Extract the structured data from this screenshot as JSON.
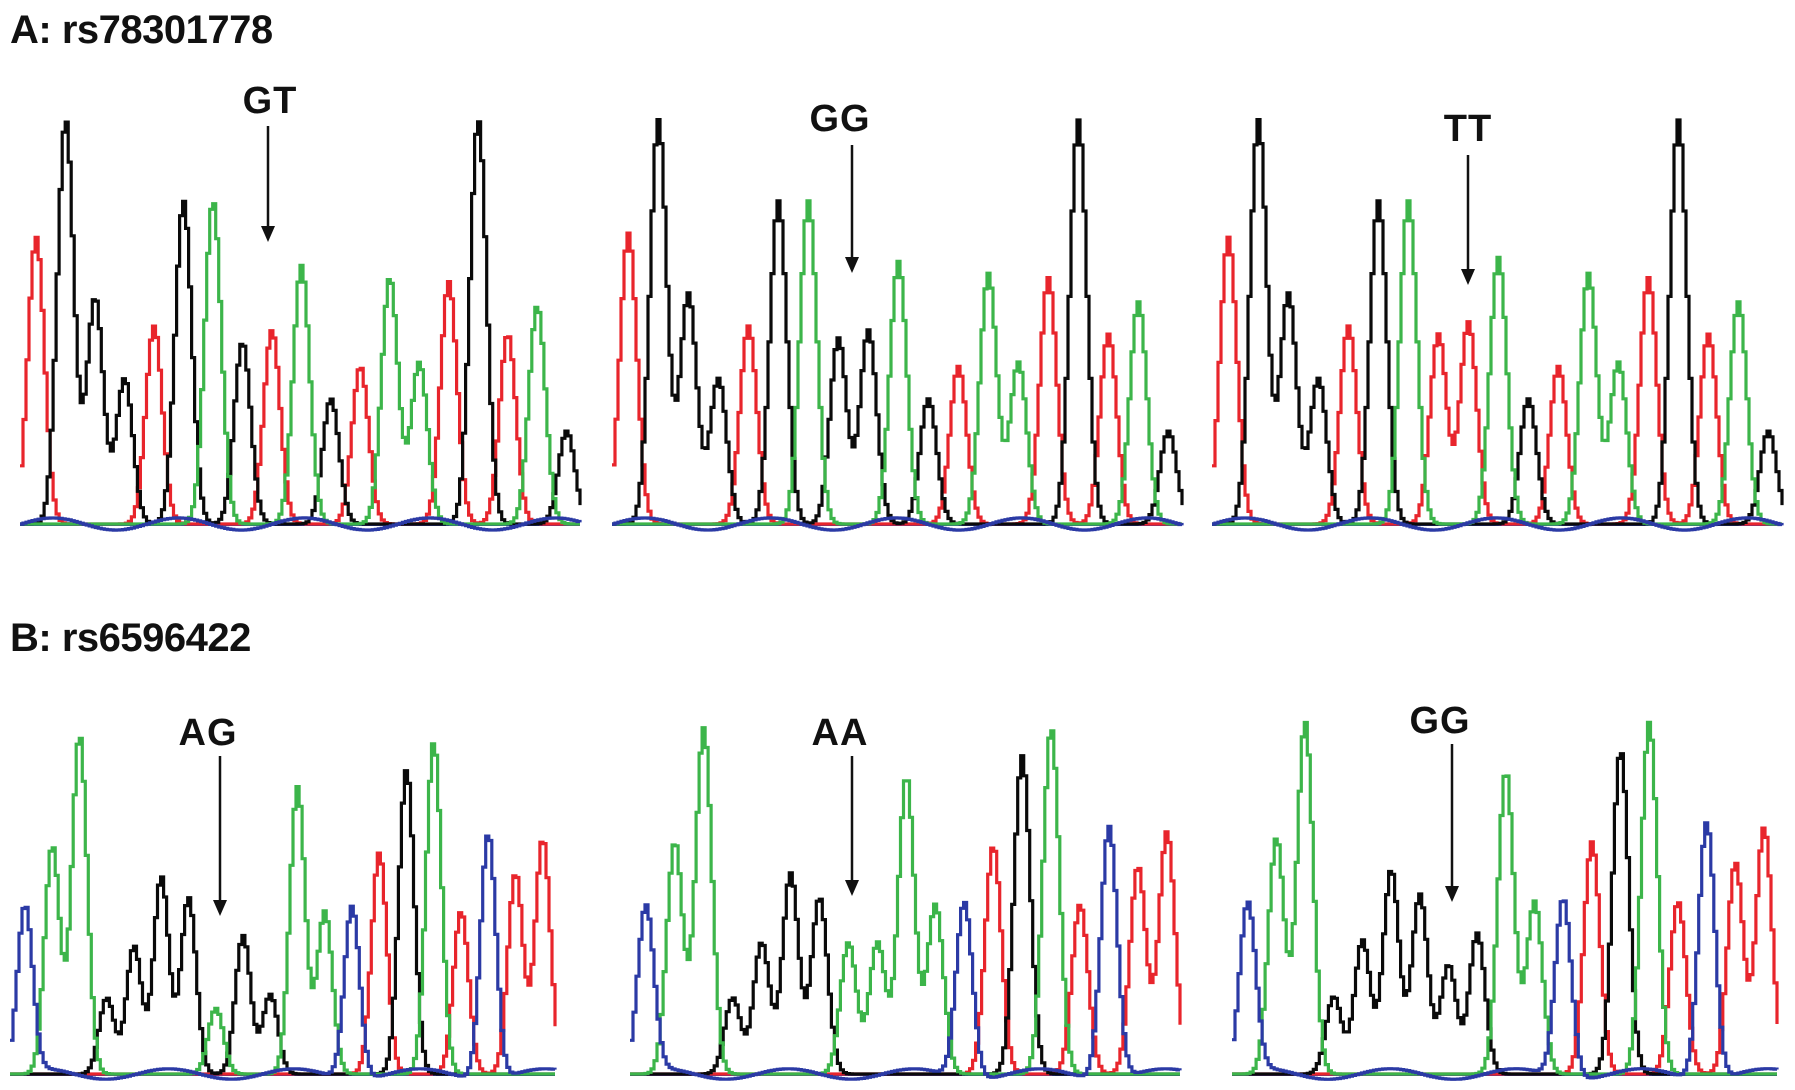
{
  "figure": {
    "sections": [
      {
        "title": "A: rs78301778",
        "panels": [
          {
            "genotype": "GT",
            "peaks": [
              {
                "c": "red",
                "h": 0.71
              },
              {
                "c": "black",
                "h": 1.0
              },
              {
                "c": "black",
                "h": 0.56
              },
              {
                "c": "black",
                "h": 0.36
              },
              {
                "c": "red",
                "h": 0.49
              },
              {
                "c": "black",
                "h": 0.8
              },
              {
                "c": "green",
                "h": 0.8
              },
              {
                "c": "black",
                "h": 0.45
              },
              {
                "c": "red",
                "h": 0.48
              },
              {
                "c": "green",
                "h": 0.64
              },
              {
                "c": "black",
                "h": 0.31
              },
              {
                "c": "red",
                "h": 0.39
              },
              {
                "c": "green",
                "h": 0.61
              },
              {
                "c": "green",
                "h": 0.4
              },
              {
                "c": "red",
                "h": 0.6
              },
              {
                "c": "black",
                "h": 1.0
              },
              {
                "c": "red",
                "h": 0.47
              },
              {
                "c": "green",
                "h": 0.54
              },
              {
                "c": "black",
                "h": 0.23
              }
            ]
          },
          {
            "genotype": "GG",
            "peaks": [
              {
                "c": "red",
                "h": 0.72
              },
              {
                "c": "black",
                "h": 1.0
              },
              {
                "c": "black",
                "h": 0.57
              },
              {
                "c": "black",
                "h": 0.36
              },
              {
                "c": "red",
                "h": 0.49
              },
              {
                "c": "black",
                "h": 0.8
              },
              {
                "c": "green",
                "h": 0.8
              },
              {
                "c": "black",
                "h": 0.46
              },
              {
                "c": "black",
                "h": 0.48
              },
              {
                "c": "green",
                "h": 0.65
              },
              {
                "c": "black",
                "h": 0.31
              },
              {
                "c": "red",
                "h": 0.39
              },
              {
                "c": "green",
                "h": 0.62
              },
              {
                "c": "green",
                "h": 0.4
              },
              {
                "c": "red",
                "h": 0.61
              },
              {
                "c": "black",
                "h": 1.0
              },
              {
                "c": "red",
                "h": 0.47
              },
              {
                "c": "green",
                "h": 0.55
              },
              {
                "c": "black",
                "h": 0.23
              }
            ]
          },
          {
            "genotype": "TT",
            "peaks": [
              {
                "c": "red",
                "h": 0.71
              },
              {
                "c": "black",
                "h": 1.0
              },
              {
                "c": "black",
                "h": 0.57
              },
              {
                "c": "black",
                "h": 0.36
              },
              {
                "c": "red",
                "h": 0.49
              },
              {
                "c": "black",
                "h": 0.8
              },
              {
                "c": "green",
                "h": 0.8
              },
              {
                "c": "red",
                "h": 0.47
              },
              {
                "c": "red",
                "h": 0.5
              },
              {
                "c": "green",
                "h": 0.66
              },
              {
                "c": "black",
                "h": 0.31
              },
              {
                "c": "red",
                "h": 0.39
              },
              {
                "c": "green",
                "h": 0.62
              },
              {
                "c": "green",
                "h": 0.4
              },
              {
                "c": "red",
                "h": 0.61
              },
              {
                "c": "black",
                "h": 1.0
              },
              {
                "c": "red",
                "h": 0.47
              },
              {
                "c": "green",
                "h": 0.55
              },
              {
                "c": "black",
                "h": 0.23
              }
            ]
          }
        ]
      },
      {
        "title": "B: rs6596422",
        "panels": [
          {
            "genotype": "AG",
            "peaks": [
              {
                "c": "blue",
                "h": 0.48
              },
              {
                "c": "green",
                "h": 0.66
              },
              {
                "c": "green",
                "h": 0.98
              },
              {
                "c": "black",
                "h": 0.22
              },
              {
                "c": "black",
                "h": 0.37
              },
              {
                "c": "black",
                "h": 0.57
              },
              {
                "c": "black",
                "h": 0.51
              },
              {
                "c": "green",
                "h": 0.19
              },
              {
                "c": "black",
                "h": 0.4
              },
              {
                "c": "black",
                "h": 0.23
              },
              {
                "c": "green",
                "h": 0.83
              },
              {
                "c": "green",
                "h": 0.47
              },
              {
                "c": "blue",
                "h": 0.5
              },
              {
                "c": "red",
                "h": 0.64
              },
              {
                "c": "black",
                "h": 0.88
              },
              {
                "c": "green",
                "h": 0.96
              },
              {
                "c": "red",
                "h": 0.47
              },
              {
                "c": "blue",
                "h": 0.71
              },
              {
                "c": "red",
                "h": 0.58
              },
              {
                "c": "red",
                "h": 0.68
              }
            ]
          },
          {
            "genotype": "AA",
            "peaks": [
              {
                "c": "blue",
                "h": 0.48
              },
              {
                "c": "green",
                "h": 0.67
              },
              {
                "c": "green",
                "h": 1.0
              },
              {
                "c": "black",
                "h": 0.22
              },
              {
                "c": "black",
                "h": 0.38
              },
              {
                "c": "black",
                "h": 0.58
              },
              {
                "c": "black",
                "h": 0.51
              },
              {
                "c": "green",
                "h": 0.38
              },
              {
                "c": "green",
                "h": 0.38
              },
              {
                "c": "green",
                "h": 0.86
              },
              {
                "c": "green",
                "h": 0.49
              },
              {
                "c": "blue",
                "h": 0.51
              },
              {
                "c": "red",
                "h": 0.66
              },
              {
                "c": "black",
                "h": 0.92
              },
              {
                "c": "green",
                "h": 1.0
              },
              {
                "c": "red",
                "h": 0.49
              },
              {
                "c": "blue",
                "h": 0.73
              },
              {
                "c": "red",
                "h": 0.6
              },
              {
                "c": "red",
                "h": 0.7
              }
            ]
          },
          {
            "genotype": "GG",
            "peaks": [
              {
                "c": "blue",
                "h": 0.48
              },
              {
                "c": "green",
                "h": 0.67
              },
              {
                "c": "green",
                "h": 1.0
              },
              {
                "c": "black",
                "h": 0.22
              },
              {
                "c": "black",
                "h": 0.38
              },
              {
                "c": "black",
                "h": 0.58
              },
              {
                "c": "black",
                "h": 0.51
              },
              {
                "c": "black",
                "h": 0.31
              },
              {
                "c": "black",
                "h": 0.4
              },
              {
                "c": "green",
                "h": 0.86
              },
              {
                "c": "green",
                "h": 0.49
              },
              {
                "c": "blue",
                "h": 0.51
              },
              {
                "c": "red",
                "h": 0.66
              },
              {
                "c": "black",
                "h": 0.92
              },
              {
                "c": "green",
                "h": 1.0
              },
              {
                "c": "red",
                "h": 0.49
              },
              {
                "c": "blue",
                "h": 0.73
              },
              {
                "c": "red",
                "h": 0.6
              },
              {
                "c": "red",
                "h": 0.7
              }
            ]
          }
        ]
      }
    ]
  },
  "colors": {
    "red": "#e8252c",
    "black": "#0a0a0a",
    "green": "#3cb54a",
    "blue": "#2b3aa5"
  }
}
